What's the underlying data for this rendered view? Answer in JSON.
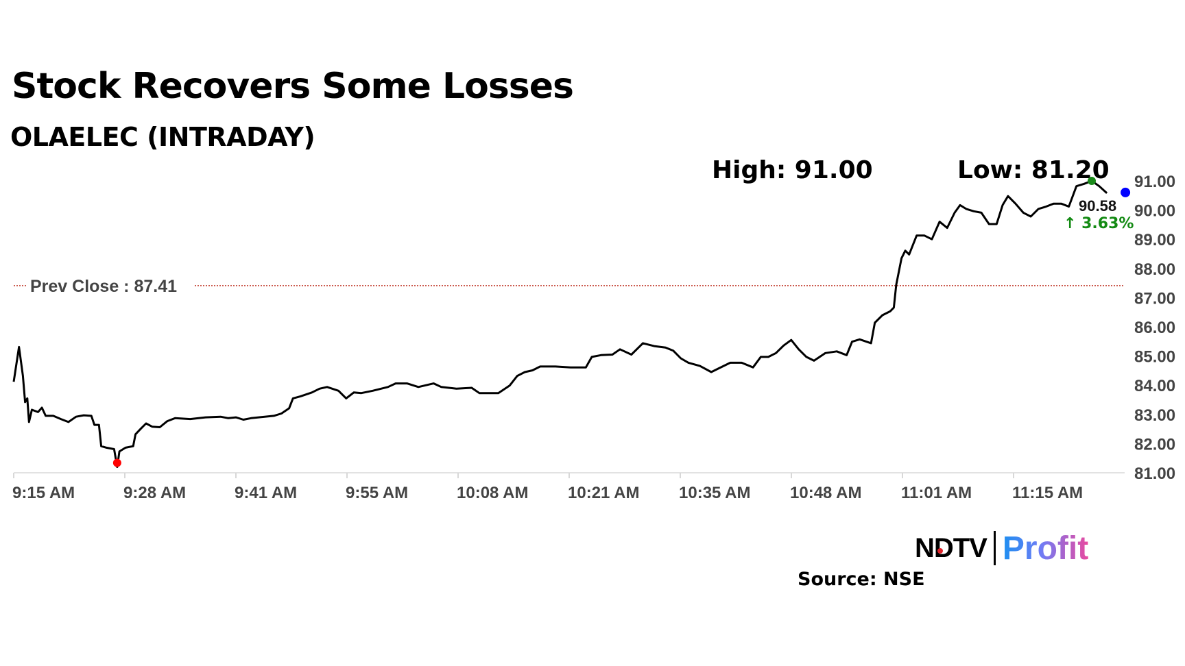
{
  "header": {
    "title": "Stock Recovers Some Losses",
    "subtitle": "OLAELEC (INTRADAY)",
    "high_label": "High: 91.00",
    "low_label": "Low: 81.20"
  },
  "chart_data": {
    "type": "line",
    "title": "Stock Recovers Some Losses",
    "subtitle": "OLAELEC (INTRADAY)",
    "xlabel": "",
    "ylabel": "",
    "x_ticks": [
      "9:15 AM",
      "9:28 AM",
      "9:41 AM",
      "9:55 AM",
      "10:08 AM",
      "10:21 AM",
      "10:35 AM",
      "10:48 AM",
      "11:01 AM",
      "11:15 AM"
    ],
    "y_ticks": [
      "91.00",
      "90.00",
      "89.00",
      "88.00",
      "87.00",
      "86.00",
      "85.00",
      "84.00",
      "83.00",
      "82.00",
      "81.00"
    ],
    "ylim": [
      81,
      91
    ],
    "y_axis_position": "right",
    "grid": false,
    "line_color": "#000000",
    "prev_close": {
      "label": "Prev Close : 87.41",
      "value": 87.41,
      "color": "#c0392b"
    },
    "high": {
      "value": 91.0,
      "color": "#1a8a1a"
    },
    "low": {
      "value": 81.2,
      "color": "#ff0000"
    },
    "last": {
      "value_label": "90.58",
      "change_label": "↑ 3.63%",
      "value": 90.58,
      "change_color": "#138a13",
      "marker_color": "#0000ff"
    },
    "series": [
      {
        "points": [
          [
            "9:15:00",
            84.12
          ],
          [
            "9:15:38",
            85.31
          ],
          [
            "9:16:06",
            84.32
          ],
          [
            "9:16:22",
            83.42
          ],
          [
            "9:16:38",
            83.55
          ],
          [
            "9:16:50",
            82.74
          ],
          [
            "9:17:11",
            83.16
          ],
          [
            "9:17:55",
            83.08
          ],
          [
            "9:18:23",
            83.23
          ],
          [
            "9:18:50",
            82.95
          ],
          [
            "9:19:45",
            82.95
          ],
          [
            "9:20:40",
            82.84
          ],
          [
            "9:21:34",
            82.74
          ],
          [
            "9:22:29",
            82.92
          ],
          [
            "9:23:24",
            82.97
          ],
          [
            "9:24:19",
            82.95
          ],
          [
            "9:24:41",
            82.64
          ],
          [
            "9:25:14",
            82.64
          ],
          [
            "9:25:30",
            81.91
          ],
          [
            "9:26:08",
            81.86
          ],
          [
            "9:27:03",
            81.81
          ],
          [
            "9:27:25",
            81.2
          ],
          [
            "9:27:41",
            81.73
          ],
          [
            "9:28:25",
            81.86
          ],
          [
            "9:29:20",
            81.91
          ],
          [
            "9:29:37",
            82.32
          ],
          [
            "9:30:15",
            82.51
          ],
          [
            "9:30:53",
            82.69
          ],
          [
            "9:31:37",
            82.58
          ],
          [
            "9:32:32",
            82.56
          ],
          [
            "9:33:26",
            82.77
          ],
          [
            "9:34:22",
            82.87
          ],
          [
            "9:36:11",
            82.84
          ],
          [
            "9:38:01",
            82.9
          ],
          [
            "9:39:50",
            82.92
          ],
          [
            "9:40:45",
            82.87
          ],
          [
            "9:41:40",
            82.9
          ],
          [
            "9:42:34",
            82.82
          ],
          [
            "9:43:29",
            82.87
          ],
          [
            "9:44:24",
            82.9
          ],
          [
            "9:46:13",
            82.95
          ],
          [
            "9:47:08",
            83.03
          ],
          [
            "9:48:03",
            83.21
          ],
          [
            "9:48:31",
            83.55
          ],
          [
            "9:49:25",
            83.62
          ],
          [
            "9:50:47",
            83.75
          ],
          [
            "9:51:42",
            83.88
          ],
          [
            "9:52:37",
            83.94
          ],
          [
            "9:53:59",
            83.81
          ],
          [
            "9:54:54",
            83.55
          ],
          [
            "9:55:49",
            83.75
          ],
          [
            "9:56:43",
            83.73
          ],
          [
            "9:58:05",
            83.81
          ],
          [
            "9:59:55",
            83.94
          ],
          [
            "10:00:50",
            84.06
          ],
          [
            "10:02:12",
            84.06
          ],
          [
            "10:03:34",
            83.94
          ],
          [
            "10:05:24",
            84.06
          ],
          [
            "10:06:19",
            83.94
          ],
          [
            "10:08:08",
            83.88
          ],
          [
            "10:09:58",
            83.91
          ],
          [
            "10:10:53",
            83.73
          ],
          [
            "10:11:47",
            83.73
          ],
          [
            "10:13:10",
            83.73
          ],
          [
            "10:14:32",
            83.99
          ],
          [
            "10:15:26",
            84.32
          ],
          [
            "10:16:21",
            84.45
          ],
          [
            "10:17:16",
            84.51
          ],
          [
            "10:18:11",
            84.64
          ],
          [
            "10:20:01",
            84.64
          ],
          [
            "10:21:50",
            84.61
          ],
          [
            "10:23:40",
            84.61
          ],
          [
            "10:24:23",
            84.97
          ],
          [
            "10:25:29",
            85.03
          ],
          [
            "10:26:51",
            85.05
          ],
          [
            "10:27:46",
            85.23
          ],
          [
            "10:29:08",
            85.05
          ],
          [
            "10:30:31",
            85.44
          ],
          [
            "10:31:52",
            85.34
          ],
          [
            "10:33:14",
            85.29
          ],
          [
            "10:34:10",
            85.18
          ],
          [
            "10:35:04",
            84.92
          ],
          [
            "10:35:59",
            84.77
          ],
          [
            "10:37:21",
            84.66
          ],
          [
            "10:38:43",
            84.45
          ],
          [
            "10:39:38",
            84.58
          ],
          [
            "10:41:00",
            84.77
          ],
          [
            "10:42:22",
            84.77
          ],
          [
            "10:43:44",
            84.61
          ],
          [
            "10:44:40",
            84.97
          ],
          [
            "10:45:34",
            84.97
          ],
          [
            "10:46:29",
            85.1
          ],
          [
            "10:47:24",
            85.36
          ],
          [
            "10:48:19",
            85.55
          ],
          [
            "10:49:13",
            85.23
          ],
          [
            "10:50:08",
            84.97
          ],
          [
            "10:51:03",
            84.84
          ],
          [
            "10:52:25",
            85.1
          ],
          [
            "10:53:47",
            85.16
          ],
          [
            "10:54:58",
            85.03
          ],
          [
            "10:55:37",
            85.49
          ],
          [
            "10:56:32",
            85.57
          ],
          [
            "10:57:54",
            85.44
          ],
          [
            "10:58:21",
            86.14
          ],
          [
            "10:59:16",
            86.4
          ],
          [
            "11:00:11",
            86.53
          ],
          [
            "11:00:38",
            86.66
          ],
          [
            "11:00:55",
            87.44
          ],
          [
            "11:01:33",
            88.35
          ],
          [
            "11:02:00",
            88.61
          ],
          [
            "11:02:28",
            88.48
          ],
          [
            "11:03:22",
            89.13
          ],
          [
            "11:04:17",
            89.13
          ],
          [
            "11:05:12",
            89.0
          ],
          [
            "11:06:07",
            89.6
          ],
          [
            "11:07:02",
            89.39
          ],
          [
            "11:07:56",
            89.91
          ],
          [
            "11:08:35",
            90.17
          ],
          [
            "11:09:19",
            90.04
          ],
          [
            "11:10:13",
            89.96
          ],
          [
            "11:11:08",
            89.91
          ],
          [
            "11:12:03",
            89.52
          ],
          [
            "11:12:58",
            89.52
          ],
          [
            "11:13:41",
            90.17
          ],
          [
            "11:14:20",
            90.48
          ],
          [
            "11:15:14",
            90.22
          ],
          [
            "11:16:10",
            89.91
          ],
          [
            "11:17:04",
            89.78
          ],
          [
            "11:17:59",
            90.04
          ],
          [
            "11:18:54",
            90.12
          ],
          [
            "11:19:49",
            90.22
          ],
          [
            "11:20:43",
            90.22
          ],
          [
            "11:21:38",
            90.12
          ],
          [
            "11:22:33",
            90.82
          ],
          [
            "11:23:28",
            90.9
          ],
          [
            "11:24:23",
            91.0
          ],
          [
            "11:25:17",
            90.82
          ],
          [
            "11:26:12",
            90.58
          ]
        ]
      }
    ]
  },
  "branding": {
    "logo_text_left": "NDTV",
    "logo_text_right": "Profit"
  },
  "footer": {
    "source": "Source: NSE"
  }
}
